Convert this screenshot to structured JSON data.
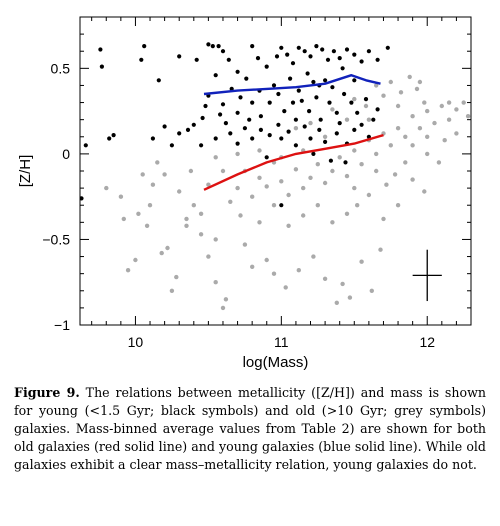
{
  "chart_data": {
    "type": "scatter",
    "xlabel": "log(Mass)",
    "ylabel": "[Z/H]",
    "xlim": [
      9.62,
      12.3
    ],
    "ylim": [
      -1.0,
      0.8
    ],
    "x_ticks": [
      10,
      11,
      12
    ],
    "x_tick_labels": [
      "10",
      "11",
      "12"
    ],
    "y_ticks": [
      0.5,
      0,
      -0.5,
      -1
    ],
    "y_tick_labels": [
      "0.5",
      "0",
      "−0.5",
      "−1"
    ],
    "x_minor_step": 0.1,
    "y_minor_step": 0.1,
    "grid": false,
    "colors": {
      "old_points": "#aaaaaa",
      "young_points": "#000000",
      "old_line": "#dd1111",
      "young_line": "#1122bb"
    },
    "series": [
      {
        "kind": "points",
        "color_key": "young_points",
        "points": [
          [
            9.76,
            0.61
          ],
          [
            9.77,
            0.51
          ],
          [
            9.85,
            0.11
          ],
          [
            9.82,
            0.09
          ],
          [
            9.66,
            0.05
          ],
          [
            9.63,
            -0.26
          ],
          [
            10.06,
            0.63
          ],
          [
            10.04,
            0.55
          ],
          [
            10.16,
            0.43
          ],
          [
            10.3,
            0.57
          ],
          [
            10.42,
            0.55
          ],
          [
            10.55,
            0.46
          ],
          [
            10.5,
            0.64
          ],
          [
            10.53,
            0.63
          ],
          [
            10.57,
            0.63
          ],
          [
            10.6,
            0.6
          ],
          [
            10.64,
            0.55
          ],
          [
            10.7,
            0.48
          ],
          [
            10.76,
            0.44
          ],
          [
            10.8,
            0.63
          ],
          [
            10.84,
            0.56
          ],
          [
            10.9,
            0.51
          ],
          [
            10.97,
            0.57
          ],
          [
            11.0,
            0.62
          ],
          [
            11.04,
            0.58
          ],
          [
            11.08,
            0.53
          ],
          [
            11.12,
            0.62
          ],
          [
            11.16,
            0.6
          ],
          [
            11.2,
            0.57
          ],
          [
            11.24,
            0.63
          ],
          [
            11.28,
            0.61
          ],
          [
            11.32,
            0.55
          ],
          [
            11.36,
            0.6
          ],
          [
            11.4,
            0.56
          ],
          [
            11.45,
            0.61
          ],
          [
            11.5,
            0.58
          ],
          [
            11.55,
            0.54
          ],
          [
            11.6,
            0.6
          ],
          [
            11.66,
            0.55
          ],
          [
            11.73,
            0.62
          ],
          [
            11.06,
            0.44
          ],
          [
            11.18,
            0.47
          ],
          [
            11.3,
            0.43
          ],
          [
            11.42,
            0.5
          ],
          [
            11.5,
            0.43
          ],
          [
            11.22,
            0.42
          ],
          [
            10.66,
            0.38
          ],
          [
            10.72,
            0.33
          ],
          [
            10.6,
            0.29
          ],
          [
            10.5,
            0.34
          ],
          [
            10.48,
            0.28
          ],
          [
            10.46,
            0.21
          ],
          [
            10.4,
            0.17
          ],
          [
            10.3,
            0.12
          ],
          [
            10.2,
            0.16
          ],
          [
            10.12,
            0.09
          ],
          [
            10.25,
            0.05
          ],
          [
            10.36,
            0.14
          ],
          [
            10.55,
            0.09
          ],
          [
            10.62,
            0.18
          ],
          [
            10.7,
            0.24
          ],
          [
            10.8,
            0.3
          ],
          [
            10.86,
            0.22
          ],
          [
            10.92,
            0.3
          ],
          [
            10.98,
            0.35
          ],
          [
            11.02,
            0.25
          ],
          [
            11.08,
            0.3
          ],
          [
            11.1,
            0.2
          ],
          [
            11.14,
            0.31
          ],
          [
            11.19,
            0.25
          ],
          [
            11.24,
            0.33
          ],
          [
            11.27,
            0.2
          ],
          [
            11.33,
            0.3
          ],
          [
            11.38,
            0.24
          ],
          [
            11.43,
            0.35
          ],
          [
            11.48,
            0.3
          ],
          [
            11.52,
            0.24
          ],
          [
            11.58,
            0.32
          ],
          [
            11.63,
            0.2
          ],
          [
            11.6,
            0.1
          ],
          [
            11.5,
            0.14
          ],
          [
            11.45,
            0.06
          ],
          [
            11.38,
            0.12
          ],
          [
            11.3,
            0.07
          ],
          [
            11.26,
            0.14
          ],
          [
            11.2,
            0.09
          ],
          [
            11.16,
            0.16
          ],
          [
            11.1,
            0.05
          ],
          [
            11.05,
            0.13
          ],
          [
            10.98,
            0.17
          ],
          [
            10.92,
            0.11
          ],
          [
            10.86,
            0.14
          ],
          [
            10.8,
            0.09
          ],
          [
            10.75,
            0.15
          ],
          [
            10.7,
            0.06
          ],
          [
            10.65,
            0.12
          ],
          [
            10.85,
            0.37
          ],
          [
            10.95,
            0.4
          ],
          [
            11.12,
            0.37
          ],
          [
            11.35,
            0.39
          ],
          [
            10.78,
            0.2
          ],
          [
            11.0,
            0.09
          ],
          [
            11.4,
            0.18
          ],
          [
            11.55,
            0.17
          ],
          [
            11.66,
            0.26
          ],
          [
            10.45,
            0.05
          ],
          [
            10.9,
            -0.02
          ],
          [
            11.22,
            0.0
          ],
          [
            11.34,
            -0.04
          ],
          [
            11.0,
            -0.3
          ],
          [
            11.44,
            -0.05
          ],
          [
            10.58,
            0.23
          ],
          [
            11.26,
            0.4
          ]
        ]
      },
      {
        "kind": "points",
        "color_key": "old_points",
        "points": [
          [
            9.8,
            -0.2
          ],
          [
            9.9,
            -0.25
          ],
          [
            10.05,
            -0.12
          ],
          [
            10.1,
            -0.3
          ],
          [
            10.02,
            -0.35
          ],
          [
            9.95,
            -0.68
          ],
          [
            10.18,
            -0.58
          ],
          [
            10.22,
            -0.55
          ],
          [
            10.28,
            -0.72
          ],
          [
            10.35,
            -0.38
          ],
          [
            10.45,
            -0.47
          ],
          [
            10.5,
            -0.6
          ],
          [
            10.55,
            -0.75
          ],
          [
            10.62,
            -0.85
          ],
          [
            10.75,
            -0.53
          ],
          [
            10.8,
            -0.66
          ],
          [
            10.9,
            -0.62
          ],
          [
            10.95,
            -0.7
          ],
          [
            11.03,
            -0.78
          ],
          [
            11.12,
            -0.68
          ],
          [
            11.22,
            -0.6
          ],
          [
            11.3,
            -0.73
          ],
          [
            11.38,
            -0.87
          ],
          [
            11.42,
            -0.76
          ],
          [
            11.55,
            -0.63
          ],
          [
            11.62,
            -0.8
          ],
          [
            11.68,
            -0.56
          ],
          [
            10.25,
            -0.8
          ],
          [
            10.6,
            -0.9
          ],
          [
            11.47,
            -0.84
          ],
          [
            10.4,
            -0.3
          ],
          [
            10.45,
            -0.35
          ],
          [
            10.5,
            -0.18
          ],
          [
            10.3,
            -0.22
          ],
          [
            10.2,
            -0.12
          ],
          [
            10.38,
            -0.1
          ],
          [
            10.15,
            -0.05
          ],
          [
            10.12,
            -0.18
          ],
          [
            10.6,
            -0.1
          ],
          [
            10.65,
            -0.28
          ],
          [
            10.7,
            -0.2
          ],
          [
            10.75,
            -0.1
          ],
          [
            10.8,
            -0.25
          ],
          [
            10.85,
            -0.14
          ],
          [
            10.9,
            -0.19
          ],
          [
            10.95,
            -0.05
          ],
          [
            11.0,
            -0.16
          ],
          [
            11.05,
            -0.24
          ],
          [
            11.1,
            -0.09
          ],
          [
            11.15,
            -0.2
          ],
          [
            11.2,
            -0.14
          ],
          [
            11.25,
            -0.06
          ],
          [
            11.3,
            -0.17
          ],
          [
            11.35,
            -0.1
          ],
          [
            11.4,
            -0.02
          ],
          [
            11.45,
            -0.13
          ],
          [
            11.5,
            0.02
          ],
          [
            11.55,
            -0.06
          ],
          [
            11.6,
            0.08
          ],
          [
            11.65,
            0.0
          ],
          [
            11.7,
            0.12
          ],
          [
            11.75,
            0.05
          ],
          [
            11.8,
            0.15
          ],
          [
            11.85,
            0.1
          ],
          [
            11.9,
            0.22
          ],
          [
            11.95,
            0.15
          ],
          [
            12.0,
            0.25
          ],
          [
            12.05,
            0.18
          ],
          [
            12.1,
            0.28
          ],
          [
            12.15,
            0.2
          ],
          [
            12.2,
            0.26
          ],
          [
            12.25,
            0.3
          ],
          [
            11.75,
            0.42
          ],
          [
            11.82,
            0.36
          ],
          [
            11.88,
            0.45
          ],
          [
            11.93,
            0.38
          ],
          [
            11.98,
            0.3
          ],
          [
            11.8,
            0.28
          ],
          [
            11.7,
            0.34
          ],
          [
            11.65,
            0.4
          ],
          [
            11.9,
            0.05
          ],
          [
            11.85,
            -0.05
          ],
          [
            11.78,
            -0.12
          ],
          [
            11.72,
            -0.18
          ],
          [
            11.6,
            -0.24
          ],
          [
            11.52,
            -0.3
          ],
          [
            11.45,
            -0.35
          ],
          [
            11.35,
            -0.4
          ],
          [
            11.25,
            -0.3
          ],
          [
            11.15,
            -0.36
          ],
          [
            11.05,
            -0.42
          ],
          [
            10.95,
            -0.3
          ],
          [
            10.85,
            -0.4
          ],
          [
            10.72,
            -0.36
          ],
          [
            11.98,
            -0.22
          ],
          [
            12.08,
            -0.05
          ],
          [
            12.0,
            0.0
          ],
          [
            12.12,
            0.08
          ],
          [
            12.2,
            0.12
          ],
          [
            12.28,
            0.22
          ],
          [
            11.3,
            0.1
          ],
          [
            11.15,
            0.02
          ],
          [
            11.0,
            -0.02
          ],
          [
            10.85,
            0.02
          ],
          [
            11.45,
            0.2
          ],
          [
            11.6,
            0.2
          ],
          [
            11.2,
            0.18
          ],
          [
            11.1,
            0.15
          ],
          [
            11.35,
            0.26
          ],
          [
            11.5,
            0.32
          ],
          [
            11.58,
            0.28
          ],
          [
            10.7,
            0.0
          ],
          [
            10.55,
            -0.02
          ],
          [
            9.92,
            -0.38
          ],
          [
            10.0,
            -0.62
          ],
          [
            10.55,
            -0.5
          ],
          [
            11.7,
            -0.38
          ],
          [
            11.8,
            -0.3
          ],
          [
            11.9,
            -0.15
          ],
          [
            12.0,
            0.1
          ],
          [
            12.15,
            0.3
          ],
          [
            11.95,
            0.42
          ],
          [
            11.65,
            -0.1
          ],
          [
            11.5,
            -0.2
          ],
          [
            10.35,
            -0.42
          ],
          [
            10.08,
            -0.42
          ]
        ]
      },
      {
        "kind": "line",
        "color_key": "old_line",
        "points": [
          [
            10.47,
            -0.21
          ],
          [
            10.7,
            -0.12
          ],
          [
            10.9,
            -0.05
          ],
          [
            11.1,
            0.0
          ],
          [
            11.3,
            0.03
          ],
          [
            11.5,
            0.06
          ],
          [
            11.7,
            0.11
          ]
        ]
      },
      {
        "kind": "line",
        "color_key": "young_line",
        "points": [
          [
            10.47,
            0.35
          ],
          [
            10.7,
            0.37
          ],
          [
            10.9,
            0.38
          ],
          [
            11.1,
            0.39
          ],
          [
            11.3,
            0.41
          ],
          [
            11.48,
            0.46
          ],
          [
            11.58,
            0.43
          ],
          [
            11.68,
            0.41
          ]
        ]
      }
    ],
    "error_bar": {
      "x": 12.0,
      "y": -0.71,
      "x_half": 0.1,
      "y_half": 0.15
    }
  },
  "caption": {
    "label": "Figure 9.",
    "text": " The relations between metallicity ([Z/H]) and mass is shown for young (<1.5 Gyr; black symbols) and old (>10 Gyr; grey symbols) galaxies. Mass-binned average values from Table 2) are shown for both old galaxies (red solid line) and young galaxies (blue solid line). While old galaxies exhibit a clear mass–metallicity relation, young galaxies do not."
  }
}
